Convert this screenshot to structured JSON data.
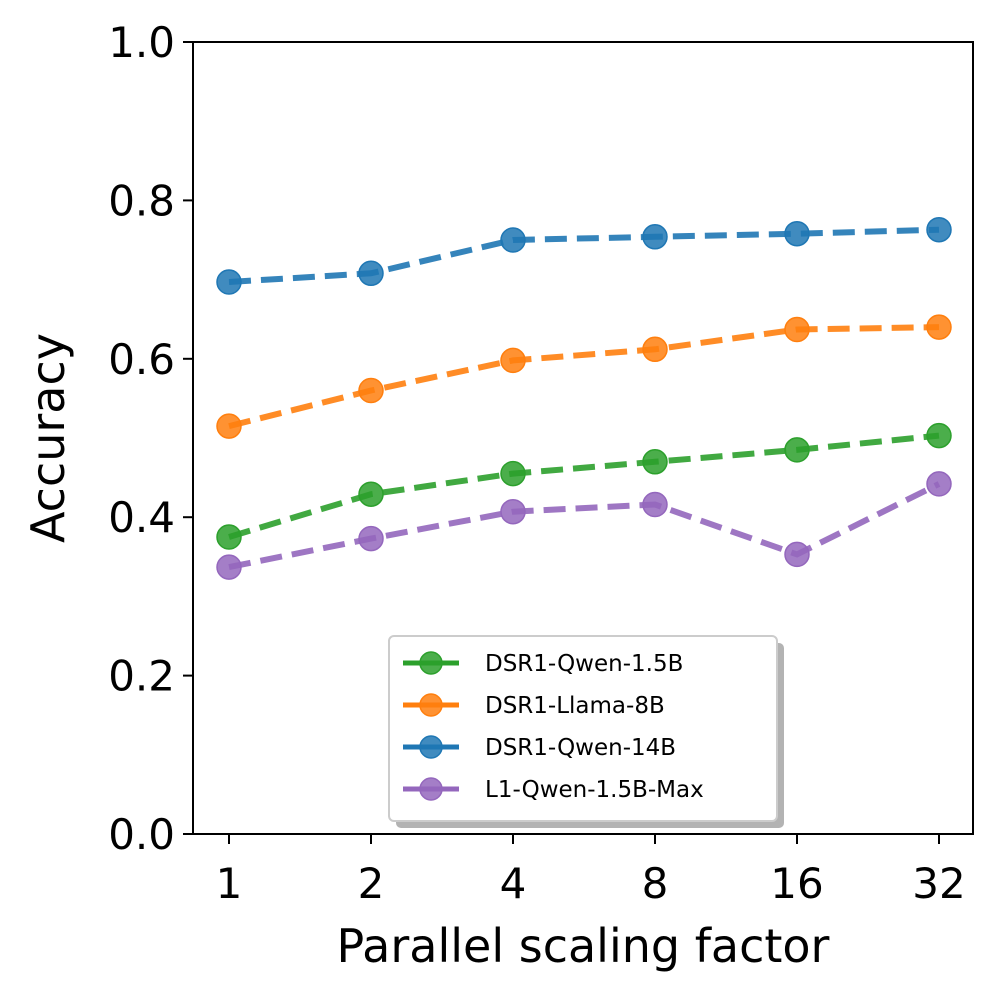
{
  "chart_data": {
    "type": "line",
    "xlabel": "Parallel scaling factor",
    "ylabel": "Accuracy",
    "x": [
      1,
      2,
      4,
      8,
      16,
      32
    ],
    "x_tick_labels": [
      "1",
      "2",
      "4",
      "8",
      "16",
      "32"
    ],
    "x_scale": "log2",
    "ylim": [
      0.0,
      1.0
    ],
    "y_ticks": [
      0.0,
      0.2,
      0.4,
      0.6,
      0.8,
      1.0
    ],
    "y_tick_labels": [
      "0.0",
      "0.2",
      "0.4",
      "0.6",
      "0.8",
      "1.0"
    ],
    "grid": false,
    "legend_position": "lower-center",
    "line_style": "dashed",
    "marker": "circle",
    "series": [
      {
        "name": "DSR1-Qwen-1.5B",
        "color": "#2ca02c",
        "values": [
          0.375,
          0.429,
          0.455,
          0.47,
          0.485,
          0.503
        ]
      },
      {
        "name": "DSR1-Llama-8B",
        "color": "#ff7f0e",
        "values": [
          0.515,
          0.56,
          0.598,
          0.612,
          0.637,
          0.64
        ]
      },
      {
        "name": "DSR1-Qwen-14B",
        "color": "#1f77b4",
        "values": [
          0.697,
          0.708,
          0.75,
          0.754,
          0.758,
          0.763
        ]
      },
      {
        "name": "L1-Qwen-1.5B-Max",
        "color": "#9467bd",
        "values": [
          0.337,
          0.373,
          0.407,
          0.416,
          0.353,
          0.442
        ]
      }
    ]
  }
}
